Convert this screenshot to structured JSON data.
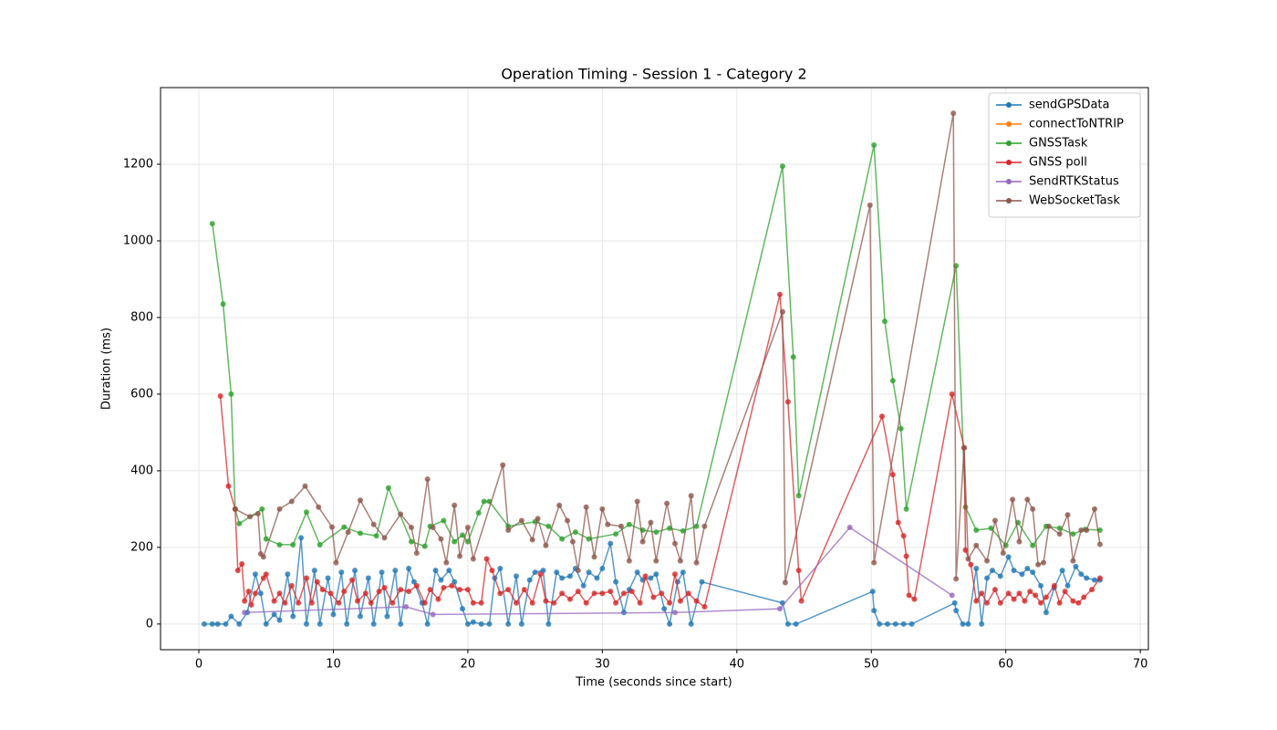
{
  "chart_data": {
    "type": "line",
    "title": "Operation Timing - Session 1 - Category 2",
    "xlabel": "Time (seconds since start)",
    "ylabel": "Duration (ms)",
    "xlim": [
      -2.85,
      70.6
    ],
    "ylim": [
      -67,
      1400
    ],
    "xticks": [
      0,
      10,
      20,
      30,
      40,
      50,
      60,
      70
    ],
    "yticks": [
      0,
      200,
      400,
      600,
      800,
      1000,
      1200
    ],
    "grid": true,
    "legend": "upper right",
    "series": [
      {
        "name": "sendGPSData",
        "color": "#1f77b4",
        "x": [
          0.4,
          1.0,
          1.4,
          2.0,
          2.4,
          3.0,
          3.6,
          4.2,
          4.6,
          5.0,
          5.6,
          6.0,
          6.6,
          7.0,
          7.6,
          8.0,
          8.6,
          9.0,
          9.6,
          10.0,
          10.6,
          11.0,
          11.6,
          12.0,
          12.6,
          13.0,
          13.6,
          14.0,
          14.6,
          15.0,
          15.6,
          16.0,
          16.6,
          17.0,
          17.6,
          18.0,
          18.6,
          19.0,
          19.6,
          20.0,
          20.4,
          21.0,
          21.6,
          22.0,
          22.4,
          23.0,
          23.6,
          24.0,
          24.6,
          25.0,
          25.6,
          26.0,
          26.6,
          27.0,
          27.6,
          28.0,
          28.6,
          29.0,
          29.6,
          30.0,
          30.6,
          31.0,
          31.6,
          32.0,
          32.6,
          33.0,
          33.6,
          34.0,
          34.6,
          35.0,
          35.6,
          36.0,
          36.6,
          37.4,
          43.4,
          43.8,
          44.4,
          50.1,
          50.2,
          50.6,
          51.2,
          51.8,
          52.4,
          53.0,
          56.2,
          56.3,
          56.8,
          57.2,
          57.8,
          58.2,
          58.6,
          59.0,
          59.6,
          60.2,
          60.6,
          61.2,
          61.6,
          62.0,
          62.6,
          63.0,
          63.6,
          64.2,
          64.6,
          65.2,
          65.6,
          66.0,
          66.6,
          67.0
        ],
        "values": [
          0,
          0,
          0,
          0,
          20,
          0,
          30,
          130,
          80,
          0,
          25,
          10,
          130,
          20,
          225,
          0,
          140,
          0,
          120,
          25,
          135,
          0,
          140,
          20,
          120,
          0,
          135,
          20,
          140,
          0,
          145,
          110,
          55,
          0,
          140,
          115,
          140,
          110,
          40,
          0,
          5,
          0,
          0,
          120,
          145,
          0,
          125,
          0,
          115,
          135,
          140,
          0,
          135,
          120,
          125,
          145,
          100,
          135,
          120,
          145,
          210,
          110,
          30,
          90,
          135,
          115,
          120,
          130,
          40,
          0,
          110,
          135,
          0,
          110,
          55,
          0,
          0,
          85,
          35,
          0,
          0,
          0,
          0,
          0,
          55,
          35,
          0,
          0,
          145,
          0,
          120,
          140,
          125,
          175,
          140,
          130,
          145,
          135,
          100,
          30,
          95,
          140,
          100,
          150,
          130,
          120,
          115,
          115
        ]
      },
      {
        "name": "connectToNTRIP",
        "color": "#ff7f0e",
        "x": [],
        "values": []
      },
      {
        "name": "GNSSTask",
        "color": "#2ca02c",
        "x": [
          1.0,
          1.8,
          2.4,
          2.7,
          3.0,
          4.7,
          5.0,
          6.0,
          7.0,
          8.0,
          9.0,
          10.8,
          12.0,
          13.2,
          14.1,
          15.8,
          16.8,
          17.2,
          18.2,
          19.0,
          19.6,
          20.0,
          20.8,
          21.2,
          21.6,
          23.0,
          25.0,
          26.0,
          27.0,
          28.0,
          29.0,
          31.0,
          32.0,
          33.0,
          34.0,
          35.0,
          36.0,
          37.0,
          43.4,
          44.2,
          44.6,
          50.2,
          51.0,
          51.6,
          52.2,
          52.6,
          56.3,
          57.0,
          57.8,
          58.9,
          60.0,
          60.9,
          62.0,
          63.0,
          64.0,
          65.0,
          65.9,
          67.0
        ],
        "values": [
          1045,
          835,
          600,
          300,
          262,
          300,
          222,
          207,
          207,
          292,
          207,
          253,
          237,
          230,
          355,
          215,
          203,
          255,
          270,
          215,
          232,
          215,
          290,
          320,
          320,
          255,
          267,
          255,
          222,
          240,
          222,
          235,
          260,
          245,
          240,
          250,
          243,
          255,
          1195,
          697,
          335,
          1250,
          790,
          635,
          510,
          300,
          935,
          305,
          245,
          250,
          205,
          265,
          205,
          255,
          250,
          235,
          247,
          245
        ]
      },
      {
        "name": "GNSS poll",
        "color": "#d62728",
        "x": [
          1.6,
          2.2,
          2.7,
          2.9,
          3.2,
          3.4,
          3.7,
          3.9,
          4.2,
          4.8,
          5.0,
          5.6,
          6.0,
          6.4,
          6.9,
          7.4,
          8.0,
          8.4,
          8.8,
          9.2,
          9.8,
          10.4,
          10.8,
          11.4,
          11.8,
          12.4,
          12.8,
          13.4,
          13.8,
          14.4,
          15.0,
          15.6,
          16.2,
          16.8,
          17.2,
          17.8,
          18.2,
          18.8,
          19.4,
          20.0,
          20.4,
          21.0,
          21.4,
          21.8,
          22.4,
          23.0,
          23.6,
          24.2,
          24.8,
          25.4,
          25.8,
          26.4,
          27.0,
          27.6,
          28.2,
          28.8,
          29.4,
          30.0,
          30.6,
          31.0,
          31.6,
          32.2,
          32.8,
          33.2,
          33.8,
          34.4,
          35.0,
          35.4,
          35.8,
          36.4,
          37.0,
          37.6,
          43.2,
          43.8,
          44.6,
          44.8,
          50.8,
          51.6,
          52.0,
          52.4,
          52.6,
          52.8,
          53.2,
          56.0,
          56.9,
          57.0,
          57.4,
          57.8,
          58.2,
          58.6,
          59.2,
          59.6,
          60.2,
          60.6,
          61.0,
          61.4,
          61.8,
          62.2,
          62.6,
          63.0,
          63.6,
          64.0,
          64.4,
          65.0,
          65.4,
          65.8,
          66.4,
          67.0
        ],
        "values": [
          595,
          360,
          300,
          140,
          157,
          60,
          85,
          50,
          80,
          120,
          130,
          60,
          80,
          55,
          100,
          55,
          120,
          55,
          110,
          90,
          80,
          55,
          85,
          115,
          60,
          80,
          55,
          85,
          95,
          55,
          90,
          85,
          100,
          55,
          90,
          65,
          95,
          100,
          90,
          90,
          55,
          55,
          170,
          140,
          80,
          90,
          55,
          90,
          55,
          130,
          60,
          55,
          80,
          65,
          85,
          55,
          80,
          80,
          85,
          55,
          80,
          85,
          55,
          125,
          70,
          80,
          55,
          130,
          60,
          80,
          60,
          45,
          860,
          580,
          140,
          60,
          542,
          390,
          265,
          230,
          177,
          75,
          65,
          600,
          460,
          193,
          155,
          60,
          80,
          55,
          90,
          55,
          80,
          65,
          80,
          60,
          85,
          75,
          55,
          70,
          100,
          55,
          85,
          60,
          55,
          70,
          90,
          120
        ]
      },
      {
        "name": "SendRTKStatus",
        "color": "#9467bd",
        "x": [
          3.4,
          15.4,
          17.4,
          35.4,
          43.2,
          48.4,
          56.0
        ],
        "values": [
          30,
          45,
          25,
          30,
          40,
          252,
          75
        ]
      },
      {
        "name": "WebSocketTask",
        "color": "#8c564b",
        "x": [
          2.7,
          3.8,
          4.4,
          4.6,
          4.8,
          6.0,
          6.9,
          7.9,
          8.9,
          9.9,
          10.2,
          11.1,
          12.0,
          13.0,
          13.8,
          15.0,
          15.8,
          16.2,
          17.0,
          17.4,
          18.0,
          18.4,
          19.0,
          19.4,
          20.0,
          20.4,
          22.6,
          23.0,
          24.0,
          24.8,
          25.2,
          25.8,
          26.8,
          27.4,
          27.8,
          28.2,
          28.8,
          29.4,
          30.0,
          30.4,
          31.4,
          32.0,
          32.6,
          33.0,
          33.6,
          34.0,
          34.8,
          35.4,
          35.8,
          36.6,
          37.0,
          37.6,
          43.4,
          43.6,
          49.9,
          50.2,
          56.1,
          56.3,
          56.9,
          57.2,
          57.8,
          58.6,
          59.2,
          59.8,
          60.5,
          61.0,
          61.6,
          62.0,
          62.4,
          62.8,
          63.2,
          64.0,
          64.6,
          65.0,
          65.6,
          66.0,
          66.6,
          67.0
        ],
        "values": [
          300,
          280,
          288,
          183,
          175,
          300,
          320,
          360,
          305,
          253,
          160,
          240,
          323,
          260,
          225,
          287,
          252,
          185,
          378,
          252,
          222,
          160,
          310,
          177,
          252,
          170,
          415,
          245,
          270,
          220,
          275,
          205,
          310,
          270,
          215,
          140,
          305,
          175,
          300,
          260,
          255,
          165,
          320,
          215,
          265,
          165,
          315,
          210,
          165,
          335,
          160,
          255,
          815,
          108,
          1093,
          160,
          1333,
          118,
          460,
          170,
          205,
          165,
          270,
          185,
          325,
          215,
          325,
          300,
          155,
          160,
          255,
          235,
          285,
          165,
          245,
          245,
          300,
          208
        ]
      }
    ]
  }
}
